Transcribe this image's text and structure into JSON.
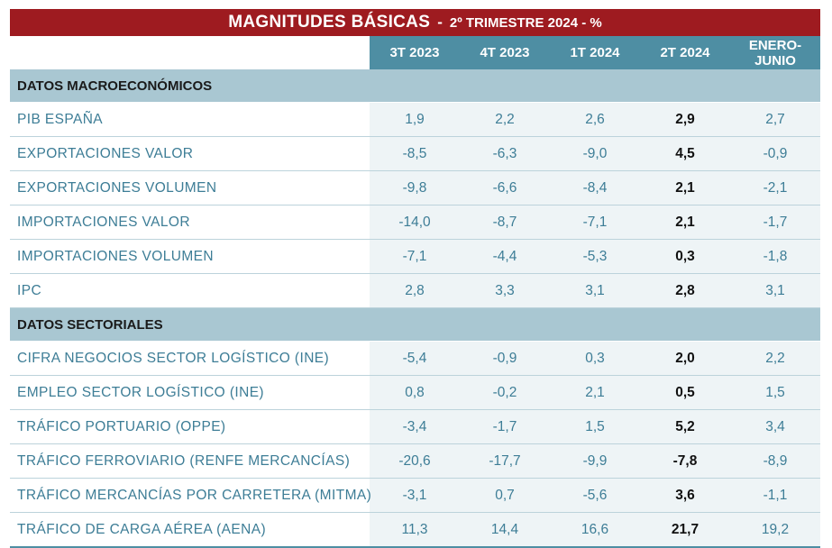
{
  "title": {
    "main": "MAGNITUDES BÁSICAS",
    "sep": "-",
    "sub": "2º TRIMESTRE 2024 - %"
  },
  "columns": [
    "3T 2023",
    "4T 2023",
    "1T 2024",
    "2T 2024",
    "ENERO-JUNIO"
  ],
  "sections": [
    {
      "heading": "DATOS MACROECONÓMICOS",
      "rows": [
        {
          "label": "PIB ESPAÑA",
          "values": [
            "1,9",
            "2,2",
            "2,6",
            "2,9",
            "2,7"
          ]
        },
        {
          "label": "EXPORTACIONES VALOR",
          "values": [
            "-8,5",
            "-6,3",
            "-9,0",
            "4,5",
            "-0,9"
          ]
        },
        {
          "label": "EXPORTACIONES VOLUMEN",
          "values": [
            "-9,8",
            "-6,6",
            "-8,4",
            "2,1",
            "-2,1"
          ]
        },
        {
          "label": "IMPORTACIONES VALOR",
          "values": [
            "-14,0",
            "-8,7",
            "-7,1",
            "2,1",
            "-1,7"
          ]
        },
        {
          "label": "IMPORTACIONES VOLUMEN",
          "values": [
            "-7,1",
            "-4,4",
            "-5,3",
            "0,3",
            "-1,8"
          ]
        },
        {
          "label": "IPC",
          "values": [
            "2,8",
            "3,3",
            "3,1",
            "2,8",
            "3,1"
          ]
        }
      ]
    },
    {
      "heading": "DATOS SECTORIALES",
      "rows": [
        {
          "label": "CIFRA NEGOCIOS SECTOR LOGÍSTICO (INE)",
          "values": [
            "-5,4",
            "-0,9",
            "0,3",
            "2,0",
            "2,2"
          ]
        },
        {
          "label": "EMPLEO SECTOR LOGÍSTICO (INE)",
          "values": [
            "0,8",
            "-0,2",
            "2,1",
            "0,5",
            "1,5"
          ]
        },
        {
          "label": "TRÁFICO PORTUARIO (OPPE)",
          "values": [
            "-3,4",
            "-1,7",
            "1,5",
            "5,2",
            "3,4"
          ]
        },
        {
          "label": "TRÁFICO FERROVIARIO (RENFE MERCANCÍAS)",
          "values": [
            "-20,6",
            "-17,7",
            "-9,9",
            "-7,8",
            "-8,9"
          ]
        },
        {
          "label": "TRÁFICO MERCANCÍAS POR CARRETERA (MITMA)",
          "values": [
            "-3,1",
            "0,7",
            "-5,6",
            "3,6",
            "-1,1"
          ]
        },
        {
          "label": "TRÁFICO DE CARGA AÉREA (AENA)",
          "values": [
            "11,3",
            "14,4",
            "16,6",
            "21,7",
            "19,2"
          ]
        }
      ]
    }
  ]
}
